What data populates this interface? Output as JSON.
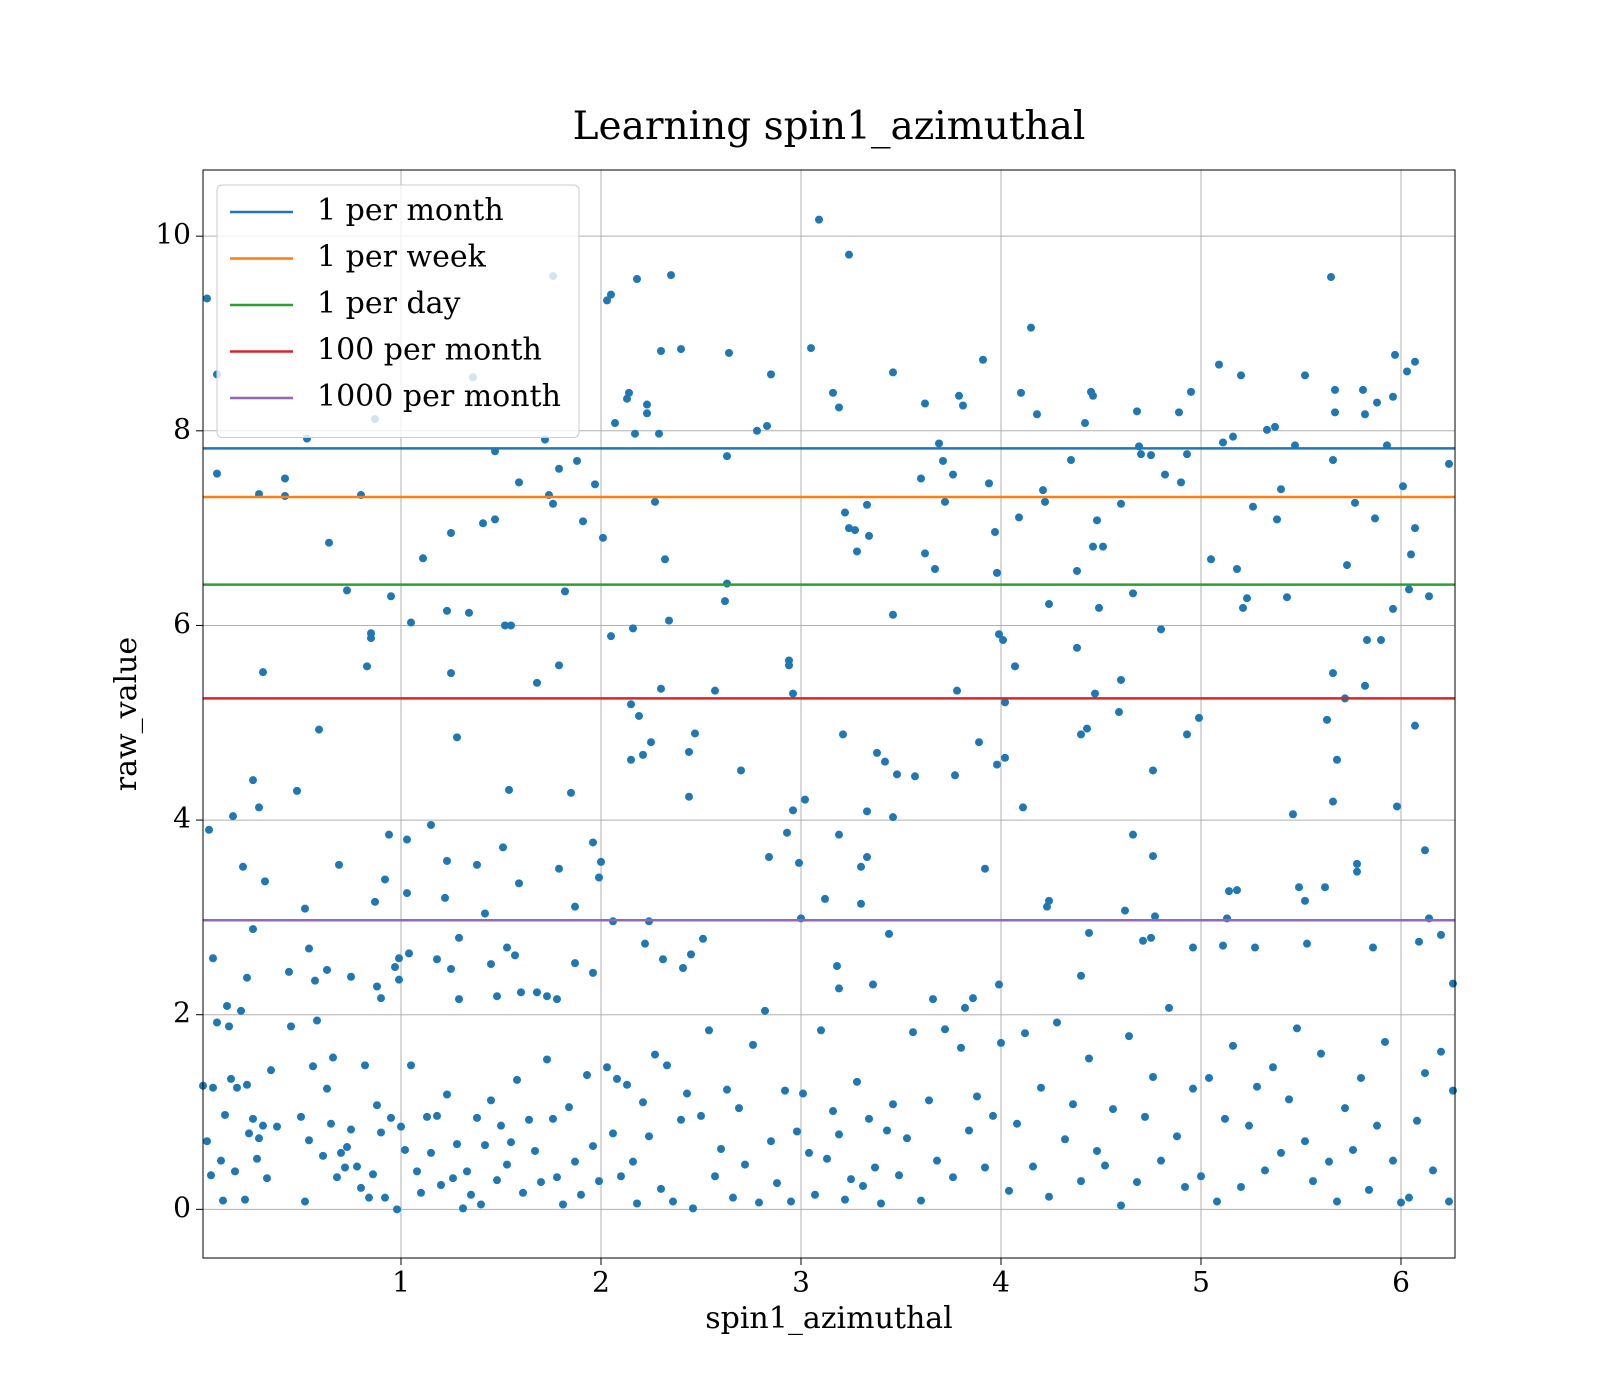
{
  "chart_data": {
    "type": "scatter",
    "title": "Learning spin1_azimuthal",
    "xlabel": "spin1_azimuthal",
    "ylabel": "raw_value",
    "color": "#1f77b4",
    "xlim": [
      0.01,
      6.27
    ],
    "ylim": [
      -0.5,
      10.68
    ],
    "xticks": [
      1,
      2,
      3,
      4,
      5,
      6
    ],
    "yticks": [
      0,
      2,
      4,
      6,
      8,
      10
    ],
    "grid": true,
    "legend": "upper left",
    "hlines": [
      {
        "name": "1 per month",
        "color": "#1f77b4",
        "value": 7.82
      },
      {
        "name": "1 per week",
        "color": "#ff7f0e",
        "value": 7.32
      },
      {
        "name": "1 per day",
        "color": "#2ca02c",
        "value": 6.42
      },
      {
        "name": "100 per month",
        "color": "#d62728",
        "value": 5.25
      },
      {
        "name": "1000 per month",
        "color": "#9467bd",
        "value": 2.97
      }
    ],
    "x": [
      0.03,
      0.08,
      0.08,
      0.04,
      0.06,
      0.16,
      0.21,
      0.23,
      0.26,
      0.26,
      0.29,
      0.29,
      0.31,
      0.32,
      0.42,
      0.42,
      0.44,
      0.48,
      0.52,
      0.53,
      0.54,
      0.57,
      0.59,
      0.63,
      0.64,
      0.69,
      0.73,
      0.75,
      0.8,
      0.83,
      0.85,
      0.85,
      0.87,
      0.87,
      0.88,
      0.9,
      0.92,
      0.94,
      0.95,
      0.97,
      0.99,
      0.99,
      1.03,
      1.03,
      1.05,
      1.04,
      1.11,
      1.15,
      1.18,
      1.22,
      1.23,
      1.23,
      1.25,
      1.25,
      1.25,
      1.28,
      1.29,
      1.29,
      1.34,
      1.36,
      1.38,
      1.41,
      1.42,
      1.45,
      1.47,
      1.47,
      1.48,
      1.51,
      1.52,
      1.54,
      1.55,
      1.53,
      1.57,
      1.59,
      1.59,
      1.6,
      1.68,
      1.68,
      1.72,
      1.73,
      1.74,
      1.76,
      1.76,
      1.78,
      1.79,
      1.79,
      1.79,
      1.82,
      1.85,
      1.87,
      1.87,
      1.88,
      1.91,
      1.96,
      1.96,
      1.97,
      2.0,
      1.99,
      2.01,
      2.03,
      2.05,
      2.05,
      2.07,
      2.06,
      2.13,
      2.14,
      2.15,
      2.15,
      2.16,
      2.17,
      2.18,
      2.19,
      2.21,
      2.22,
      2.23,
      2.23,
      2.24,
      2.25,
      2.27,
      2.29,
      2.3,
      2.3,
      2.31,
      2.32,
      2.34,
      2.35,
      2.4,
      2.41,
      2.44,
      2.44,
      2.45,
      2.47,
      2.51,
      2.57,
      2.62,
      2.63,
      2.63,
      2.64,
      2.7,
      2.78,
      2.83,
      2.84,
      2.85,
      2.93,
      2.94,
      2.94,
      2.96,
      2.96,
      2.99,
      3.0,
      3.02,
      3.05,
      3.09,
      3.12,
      3.16,
      3.18,
      3.19,
      3.19,
      3.19,
      3.21,
      3.22,
      3.24,
      3.24,
      3.27,
      3.28,
      3.3,
      3.3,
      3.33,
      3.33,
      3.33,
      3.34,
      3.36,
      3.38,
      3.42,
      3.44,
      3.46,
      3.46,
      3.46,
      3.48,
      3.57,
      3.6,
      3.62,
      3.62,
      3.66,
      3.67,
      3.69,
      3.71,
      3.72,
      3.76,
      3.77,
      3.78,
      3.79,
      3.81,
      3.82,
      3.86,
      3.89,
      3.91,
      3.92,
      3.94,
      3.97,
      3.98,
      3.98,
      3.99,
      3.99,
      4.01,
      4.02,
      4.02,
      4.07,
      4.09,
      4.1,
      4.11,
      4.15,
      4.18,
      4.21,
      4.22,
      4.23,
      4.24,
      4.24,
      4.35,
      4.38,
      4.38,
      4.4,
      4.4,
      4.42,
      4.43,
      4.44,
      4.45,
      4.46,
      4.46,
      4.47,
      4.48,
      4.49,
      4.51,
      4.59,
      4.6,
      4.6,
      4.62,
      4.66,
      4.66,
      4.68,
      4.69,
      4.7,
      4.71,
      4.75,
      4.76,
      4.76,
      4.75,
      4.77,
      4.8,
      4.82,
      4.89,
      4.9,
      4.93,
      4.93,
      4.95,
      4.96,
      4.99,
      5.05,
      5.09,
      5.11,
      5.11,
      5.13,
      5.14,
      5.16,
      5.18,
      5.18,
      5.2,
      5.21,
      5.23,
      5.26,
      5.27,
      5.33,
      5.37,
      5.38,
      5.4,
      5.43,
      5.46,
      5.47,
      5.49,
      5.52,
      5.52,
      5.53,
      5.62,
      5.63,
      5.65,
      5.66,
      5.66,
      5.66,
      5.67,
      5.67,
      5.68,
      5.72,
      5.73,
      5.77,
      5.78,
      5.78,
      5.81,
      5.82,
      5.82,
      5.83,
      5.86,
      5.87,
      5.88,
      5.9,
      5.93,
      5.96,
      5.96,
      5.97,
      5.98,
      6.01,
      6.03,
      6.04,
      6.05,
      6.07,
      6.07,
      6.07,
      6.09,
      6.12,
      6.14,
      6.14,
      6.2,
      6.24,
      6.26,
      0.01,
      0.03,
      0.05,
      0.06,
      0.08,
      0.1,
      0.11,
      0.12,
      0.13,
      0.14,
      0.15,
      0.17,
      0.18,
      0.2,
      0.22,
      0.23,
      0.24,
      0.26,
      0.28,
      0.29,
      0.31,
      0.33,
      0.35,
      0.38,
      0.45,
      0.5,
      0.52,
      0.54,
      0.56,
      0.58,
      0.61,
      0.63,
      0.65,
      0.66,
      0.68,
      0.7,
      0.72,
      0.73,
      0.75,
      0.78,
      0.8,
      0.82,
      0.84,
      0.86,
      0.88,
      0.9,
      0.92,
      0.95,
      0.98,
      1.0,
      1.02,
      1.05,
      1.08,
      1.1,
      1.13,
      1.15,
      1.18,
      1.2,
      1.23,
      1.26,
      1.28,
      1.31,
      1.33,
      1.35,
      1.38,
      1.4,
      1.42,
      1.45,
      1.48,
      1.5,
      1.53,
      1.55,
      1.58,
      1.61,
      1.64,
      1.67,
      1.7,
      1.73,
      1.76,
      1.78,
      1.81,
      1.84,
      1.87,
      1.9,
      1.93,
      1.96,
      1.99,
      2.03,
      2.06,
      2.08,
      2.1,
      2.13,
      2.16,
      2.18,
      2.21,
      2.24,
      2.27,
      2.3,
      2.33,
      2.36,
      2.4,
      2.43,
      2.46,
      2.5,
      2.54,
      2.57,
      2.6,
      2.63,
      2.66,
      2.69,
      2.72,
      2.76,
      2.79,
      2.82,
      2.85,
      2.88,
      2.92,
      2.95,
      2.98,
      3.01,
      3.04,
      3.07,
      3.1,
      3.13,
      3.16,
      3.19,
      3.22,
      3.25,
      3.28,
      3.31,
      3.34,
      3.37,
      3.4,
      3.43,
      3.46,
      3.49,
      3.53,
      3.56,
      3.6,
      3.64,
      3.68,
      3.72,
      3.76,
      3.8,
      3.84,
      3.88,
      3.92,
      3.96,
      4.0,
      4.04,
      4.08,
      4.12,
      4.16,
      4.2,
      4.24,
      4.28,
      4.32,
      4.36,
      4.4,
      4.44,
      4.48,
      4.52,
      4.56,
      4.6,
      4.64,
      4.68,
      4.72,
      4.76,
      4.8,
      4.84,
      4.88,
      4.92,
      4.96,
      5.0,
      5.04,
      5.08,
      5.12,
      5.16,
      5.2,
      5.24,
      5.28,
      5.32,
      5.36,
      5.4,
      5.44,
      5.48,
      5.52,
      5.56,
      5.6,
      5.64,
      5.68,
      5.72,
      5.76,
      5.8,
      5.84,
      5.88,
      5.92,
      5.96,
      6.0,
      6.04,
      6.08,
      6.12,
      6.16,
      6.2,
      6.24,
      6.26
    ],
    "y": [
      9.36,
      8.58,
      7.56,
      3.9,
      2.58,
      4.04,
      3.52,
      2.38,
      2.88,
      4.41,
      4.13,
      7.35,
      5.52,
      3.37,
      7.51,
      7.33,
      2.44,
      4.3,
      3.09,
      7.92,
      2.68,
      2.35,
      4.93,
      2.46,
      6.85,
      3.54,
      6.36,
      2.39,
      7.34,
      5.58,
      5.87,
      5.92,
      8.12,
      3.16,
      2.29,
      2.17,
      3.39,
      3.85,
      6.3,
      2.49,
      2.58,
      2.36,
      3.25,
      3.8,
      6.03,
      2.63,
      6.69,
      3.95,
      2.57,
      3.2,
      3.58,
      6.15,
      5.51,
      2.47,
      6.95,
      4.85,
      2.79,
      2.16,
      6.13,
      8.55,
      3.54,
      7.05,
      3.04,
      2.52,
      7.09,
      7.79,
      2.19,
      3.72,
      6.0,
      4.31,
      6.0,
      2.69,
      2.61,
      3.35,
      7.47,
      2.23,
      5.41,
      2.23,
      7.91,
      2.19,
      7.34,
      7.25,
      9.59,
      2.16,
      5.59,
      3.5,
      7.61,
      6.35,
      4.28,
      3.11,
      2.53,
      7.69,
      7.07,
      3.77,
      2.43,
      7.45,
      3.57,
      3.41,
      6.9,
      9.34,
      9.4,
      5.89,
      8.08,
      2.96,
      8.33,
      8.39,
      5.19,
      4.62,
      5.97,
      7.97,
      9.56,
      5.07,
      4.67,
      2.73,
      8.27,
      8.18,
      2.96,
      4.8,
      7.27,
      7.97,
      5.35,
      8.82,
      2.57,
      6.68,
      6.05,
      9.6,
      8.84,
      2.48,
      4.24,
      4.7,
      2.62,
      4.89,
      2.78,
      5.33,
      6.25,
      6.43,
      7.74,
      8.8,
      4.51,
      8.0,
      8.05,
      3.62,
      8.58,
      3.87,
      5.59,
      5.64,
      4.1,
      5.3,
      3.56,
      2.99,
      4.21,
      8.85,
      10.17,
      3.19,
      8.39,
      2.5,
      2.27,
      8.24,
      3.85,
      4.88,
      7.16,
      9.81,
      7.0,
      6.98,
      6.76,
      3.52,
      3.14,
      4.09,
      7.24,
      3.62,
      6.92,
      2.31,
      4.69,
      4.6,
      2.83,
      8.6,
      4.03,
      6.11,
      4.47,
      4.45,
      7.51,
      6.74,
      8.28,
      2.16,
      6.58,
      7.87,
      7.69,
      7.27,
      7.55,
      4.46,
      5.33,
      8.36,
      8.26,
      2.07,
      2.17,
      4.8,
      8.73,
      3.5,
      7.46,
      6.96,
      4.57,
      6.54,
      5.91,
      2.31,
      5.85,
      4.64,
      5.21,
      5.58,
      7.11,
      8.39,
      4.13,
      9.06,
      8.17,
      7.39,
      7.27,
      3.11,
      6.22,
      3.17,
      7.7,
      6.56,
      5.77,
      4.88,
      2.4,
      8.08,
      4.94,
      2.84,
      8.4,
      6.81,
      8.36,
      5.3,
      7.08,
      6.18,
      6.81,
      5.11,
      5.44,
      7.25,
      3.07,
      6.33,
      3.85,
      8.2,
      7.84,
      7.76,
      2.76,
      7.75,
      4.51,
      3.63,
      2.79,
      3.01,
      5.96,
      7.55,
      8.19,
      7.47,
      7.76,
      4.88,
      8.4,
      2.69,
      5.05,
      6.68,
      8.68,
      7.88,
      2.71,
      2.99,
      3.27,
      7.94,
      3.28,
      6.58,
      8.57,
      6.18,
      6.28,
      7.22,
      2.69,
      8.01,
      8.04,
      7.09,
      7.4,
      6.29,
      4.06,
      7.85,
      3.31,
      3.17,
      8.57,
      2.73,
      3.31,
      5.03,
      9.58,
      7.7,
      4.19,
      5.51,
      8.42,
      8.19,
      4.62,
      5.25,
      6.62,
      7.26,
      3.55,
      3.47,
      8.42,
      8.17,
      5.38,
      5.85,
      2.69,
      7.1,
      8.29,
      5.85,
      7.85,
      6.17,
      8.35,
      8.78,
      4.14,
      7.43,
      8.61,
      6.37,
      6.73,
      7.0,
      8.71,
      4.97,
      2.75,
      3.69,
      6.3,
      2.99,
      2.82,
      7.66,
      2.32,
      1.27,
      0.7,
      0.35,
      1.25,
      1.92,
      0.5,
      0.09,
      0.97,
      2.09,
      1.88,
      1.34,
      0.39,
      1.25,
      2.04,
      0.1,
      1.28,
      0.78,
      0.93,
      0.52,
      0.73,
      0.86,
      0.32,
      1.43,
      0.85,
      1.88,
      0.95,
      0.08,
      0.71,
      1.47,
      1.94,
      0.55,
      1.24,
      0.88,
      1.56,
      0.33,
      0.58,
      0.43,
      0.64,
      0.82,
      0.44,
      0.22,
      1.48,
      0.12,
      0.36,
      1.07,
      0.79,
      0.12,
      0.94,
      0.0,
      0.85,
      0.61,
      1.48,
      0.39,
      0.17,
      0.95,
      0.58,
      0.96,
      0.25,
      1.18,
      0.32,
      0.67,
      0.01,
      0.39,
      0.15,
      0.94,
      0.05,
      0.66,
      1.12,
      0.3,
      0.86,
      0.46,
      0.69,
      1.33,
      0.17,
      0.92,
      0.6,
      0.28,
      1.54,
      0.93,
      0.33,
      0.05,
      1.05,
      0.49,
      0.15,
      1.38,
      0.65,
      0.29,
      1.46,
      0.78,
      1.34,
      0.34,
      1.28,
      0.49,
      0.06,
      1.1,
      0.75,
      1.59,
      0.21,
      1.48,
      0.08,
      0.92,
      1.19,
      0.01,
      0.96,
      1.84,
      0.34,
      0.62,
      1.23,
      0.12,
      1.04,
      0.46,
      1.69,
      0.07,
      2.04,
      0.7,
      0.27,
      1.22,
      0.08,
      0.8,
      1.19,
      0.58,
      0.15,
      1.84,
      0.52,
      1.01,
      0.77,
      0.1,
      0.31,
      1.31,
      0.24,
      0.93,
      0.43,
      0.06,
      0.81,
      1.08,
      0.35,
      0.73,
      1.82,
      0.09,
      1.12,
      0.5,
      1.85,
      0.33,
      1.66,
      0.81,
      1.16,
      0.43,
      0.96,
      1.71,
      0.19,
      0.88,
      1.81,
      0.44,
      1.25,
      0.13,
      1.92,
      0.72,
      1.08,
      0.29,
      1.55,
      0.6,
      0.45,
      1.03,
      0.04,
      1.78,
      0.28,
      0.95,
      1.36,
      0.5,
      2.07,
      0.75,
      0.23,
      1.24,
      0.34,
      1.35,
      0.08,
      0.93,
      1.68,
      0.23,
      0.86,
      1.26,
      0.4,
      1.46,
      0.58,
      1.13,
      1.86,
      0.7,
      0.29,
      1.6,
      0.49,
      0.08,
      1.04,
      0.61,
      1.35,
      0.2,
      0.86,
      1.72,
      0.5,
      0.07,
      0.12,
      0.91,
      1.4,
      0.4,
      1.62,
      0.08,
      1.22
    ]
  }
}
